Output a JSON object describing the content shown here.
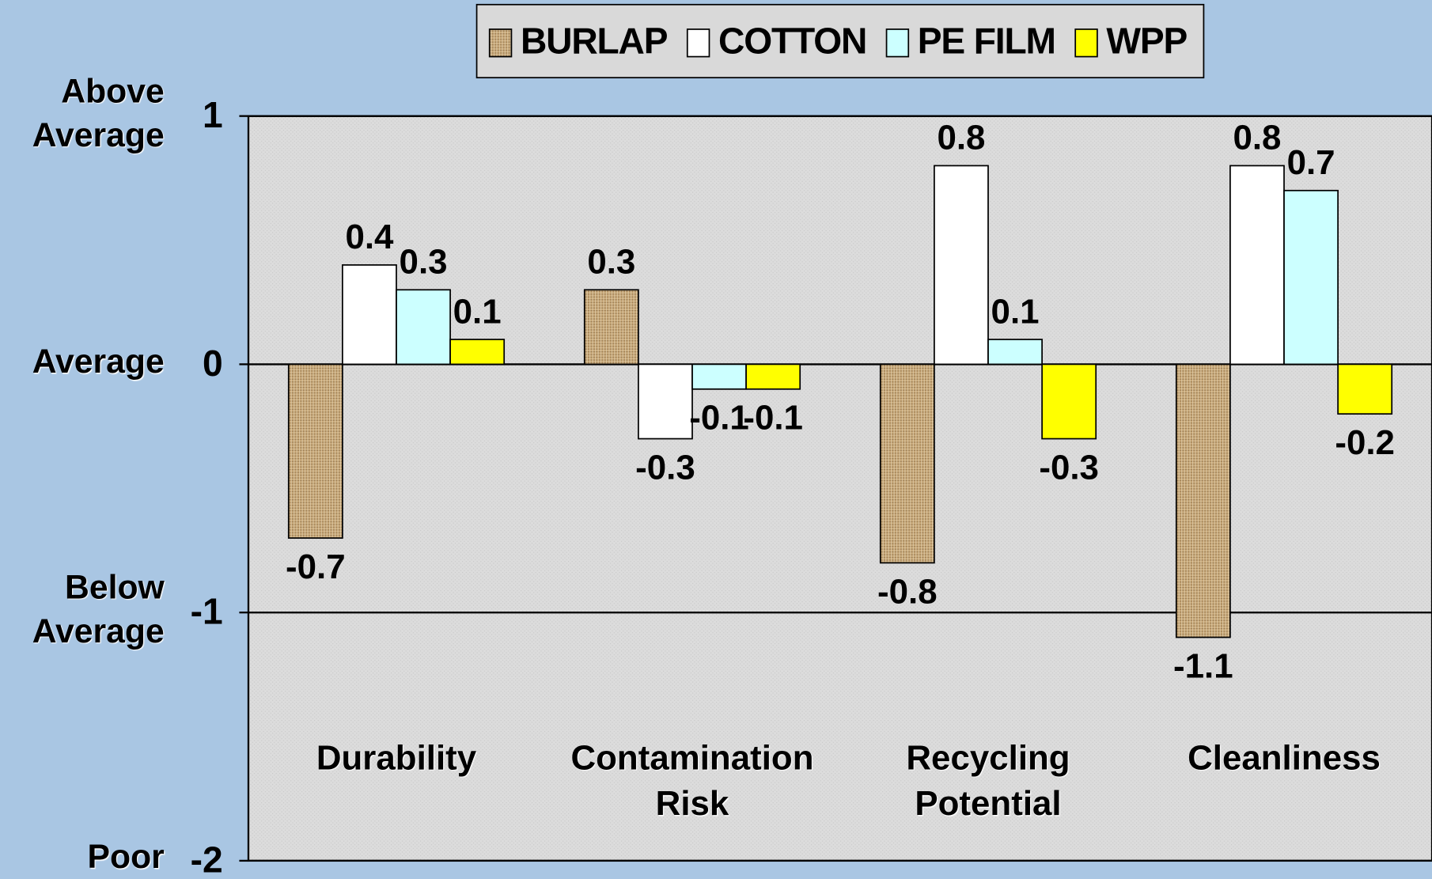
{
  "chart_data": {
    "type": "bar",
    "categories": [
      "Durability",
      "Contamination Risk",
      "Recycling Potential",
      "Cleanliness"
    ],
    "series": [
      {
        "name": "BURLAP",
        "color": "#c8a878",
        "values": [
          -0.7,
          0.3,
          -0.8,
          -1.1
        ]
      },
      {
        "name": "COTTON",
        "color": "#ffffff",
        "values": [
          0.4,
          -0.3,
          0.8,
          0.8
        ]
      },
      {
        "name": "PE FILM",
        "color": "#ccffff",
        "values": [
          0.3,
          -0.1,
          0.1,
          0.7
        ]
      },
      {
        "name": "WPP",
        "color": "#ffff00",
        "values": [
          0.1,
          -0.1,
          -0.3,
          -0.2
        ]
      }
    ],
    "ylim": [
      -2,
      1
    ],
    "yticks": [
      -2,
      -1,
      0,
      1
    ],
    "y_level_labels": [
      "Poor",
      "Below Average",
      "Average",
      "Above Average"
    ],
    "grid": true,
    "legend": "top"
  }
}
